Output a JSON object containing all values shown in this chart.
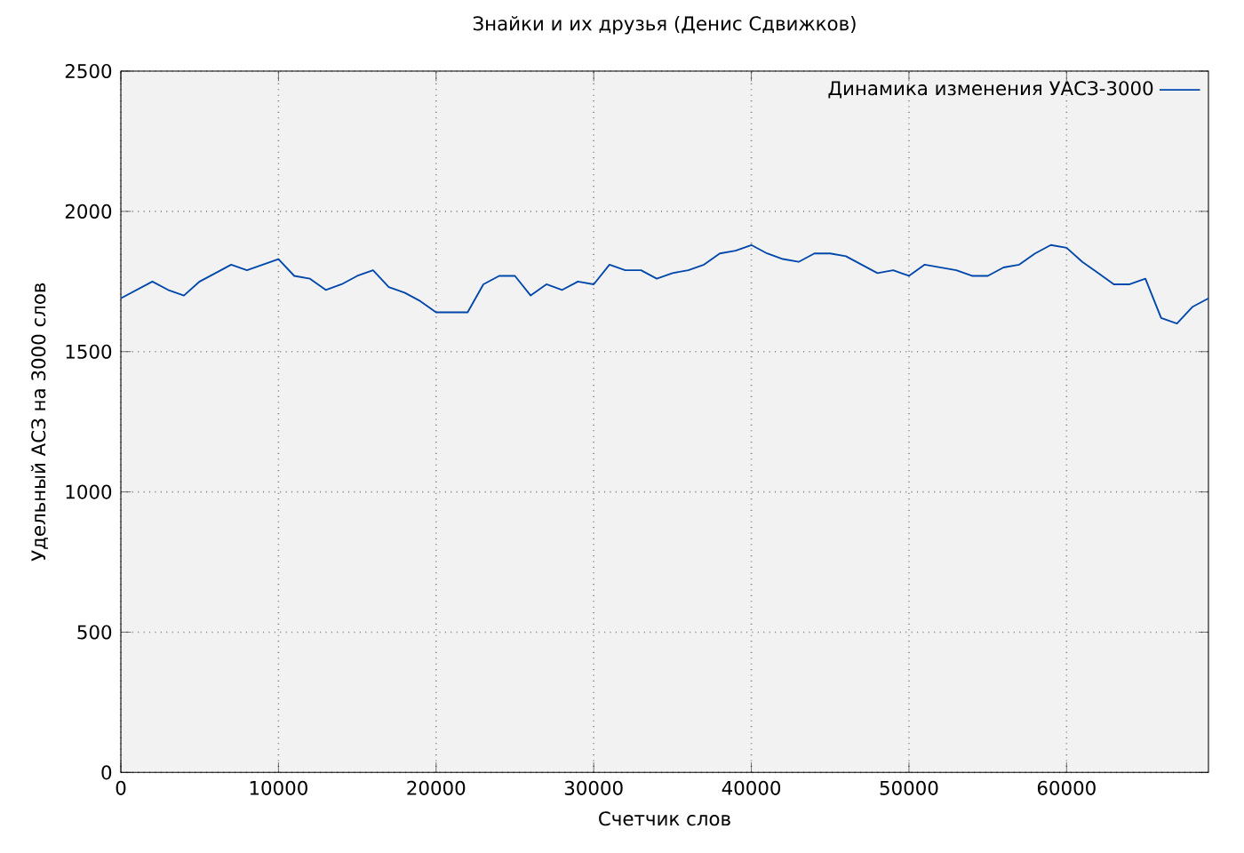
{
  "chart_data": {
    "type": "line",
    "title": "Знайки и их друзья (Денис Сдвижков)",
    "xlabel": "Счетчик слов",
    "ylabel": "Удельный АСЗ на 3000 слов",
    "x": [
      0,
      1000,
      2000,
      3000,
      4000,
      5000,
      6000,
      7000,
      8000,
      9000,
      10000,
      11000,
      12000,
      13000,
      14000,
      15000,
      16000,
      17000,
      18000,
      19000,
      20000,
      21000,
      22000,
      23000,
      24000,
      25000,
      26000,
      27000,
      28000,
      29000,
      30000,
      31000,
      32000,
      33000,
      34000,
      35000,
      36000,
      37000,
      38000,
      39000,
      40000,
      41000,
      42000,
      43000,
      44000,
      45000,
      46000,
      47000,
      48000,
      49000,
      50000,
      51000,
      52000,
      53000,
      54000,
      55000,
      56000,
      57000,
      58000,
      59000,
      60000,
      61000,
      62000,
      63000,
      64000,
      65000,
      66000,
      67000,
      68000,
      69000
    ],
    "series": [
      {
        "name": "Динамика изменения УАСЗ-3000",
        "color": "#0047ab",
        "values": [
          1690,
          1720,
          1750,
          1720,
          1700,
          1750,
          1780,
          1810,
          1790,
          1810,
          1830,
          1770,
          1760,
          1720,
          1740,
          1770,
          1790,
          1730,
          1710,
          1680,
          1640,
          1640,
          1640,
          1740,
          1770,
          1770,
          1700,
          1740,
          1720,
          1750,
          1740,
          1810,
          1790,
          1790,
          1760,
          1780,
          1790,
          1810,
          1850,
          1860,
          1880,
          1850,
          1830,
          1820,
          1850,
          1850,
          1840,
          1810,
          1780,
          1790,
          1770,
          1810,
          1800,
          1790,
          1770,
          1770,
          1800,
          1810,
          1850,
          1880,
          1870,
          1820,
          1780,
          1740,
          1740,
          1760,
          1620,
          1600,
          1660,
          1690
        ]
      }
    ],
    "xlim": [
      0,
      69000
    ],
    "ylim": [
      0,
      2500
    ],
    "xticks": [
      0,
      10000,
      20000,
      30000,
      40000,
      50000,
      60000
    ],
    "yticks": [
      0,
      500,
      1000,
      1500,
      2000,
      2500
    ],
    "grid": true,
    "legend": "top right",
    "marker": "none",
    "line_style": "solid"
  }
}
